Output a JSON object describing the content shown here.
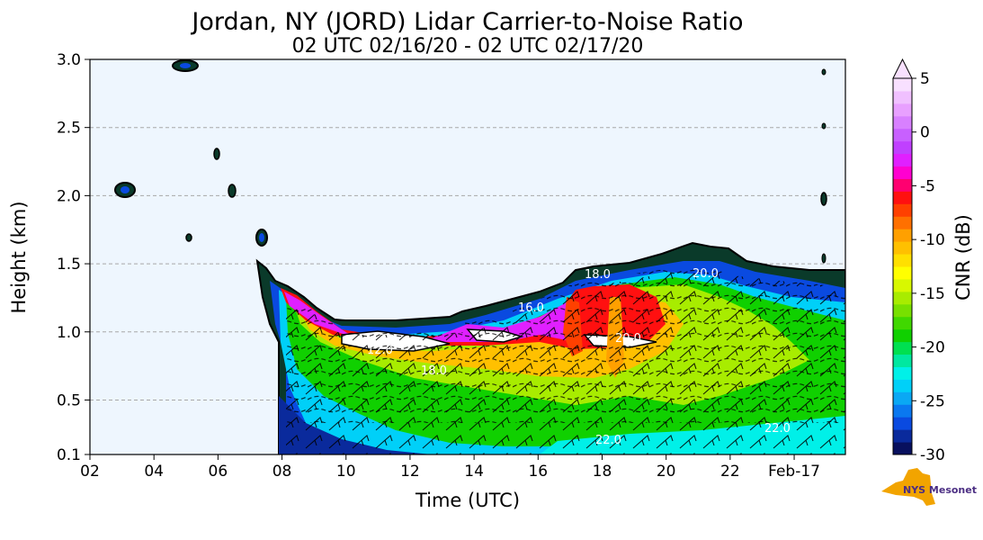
{
  "chart_data": {
    "type": "heatmap",
    "title": "Jordan, NY (JORD) Lidar Carrier-to-Noise Ratio",
    "subtitle": "02 UTC 02/16/20 - 02 UTC 02/17/20",
    "xlabel": "Time (UTC)",
    "ylabel": "Height (km)",
    "xlim": [
      2,
      25.6
    ],
    "ylim": [
      0.1,
      3.0
    ],
    "x_ticks": [
      {
        "value": 2,
        "label": "02"
      },
      {
        "value": 4,
        "label": "04"
      },
      {
        "value": 6,
        "label": "06"
      },
      {
        "value": 8,
        "label": "08"
      },
      {
        "value": 10,
        "label": "10"
      },
      {
        "value": 12,
        "label": "12"
      },
      {
        "value": 14,
        "label": "14"
      },
      {
        "value": 16,
        "label": "16"
      },
      {
        "value": 18,
        "label": "18"
      },
      {
        "value": 20,
        "label": "20"
      },
      {
        "value": 22,
        "label": "22"
      },
      {
        "value": 24,
        "label": "Feb-17"
      }
    ],
    "y_ticks": [
      {
        "value": 0.1,
        "label": "0.1"
      },
      {
        "value": 0.5,
        "label": "0.5"
      },
      {
        "value": 1.0,
        "label": "1.0"
      },
      {
        "value": 1.5,
        "label": "1.5"
      },
      {
        "value": 2.0,
        "label": "2.0"
      },
      {
        "value": 2.5,
        "label": "2.5"
      },
      {
        "value": 3.0,
        "label": "3.0"
      }
    ],
    "grid": "horizontal dashed",
    "colorbar": {
      "label": "CNR (dB)",
      "range": [
        -30,
        5
      ],
      "ticks": [
        "5",
        "0",
        "-5",
        "-10",
        "-15",
        "-20",
        "-25",
        "-30"
      ],
      "extend": "max",
      "colors": [
        "#08105e",
        "#0a2a9c",
        "#0a4ae0",
        "#0a78f0",
        "#0aa8f4",
        "#00d0f8",
        "#00f0e8",
        "#00e8a0",
        "#00e050",
        "#10d000",
        "#40d800",
        "#78e000",
        "#a8ec00",
        "#d8f800",
        "#ffff00",
        "#ffe000",
        "#ffc000",
        "#ffa000",
        "#ff7000",
        "#ff4000",
        "#ff1010",
        "#ff0070",
        "#ff00d0",
        "#e020ff",
        "#c040ff",
        "#c860ff",
        "#d880ff",
        "#e8a0ff",
        "#f0c0ff",
        "#f8e0ff"
      ]
    },
    "contour_labels": [
      "18.0",
      "18.0",
      "20.0",
      "22.0",
      "22.0",
      "20.0",
      "16.0",
      "12.0"
    ],
    "logo": "NYS Mesonet"
  }
}
